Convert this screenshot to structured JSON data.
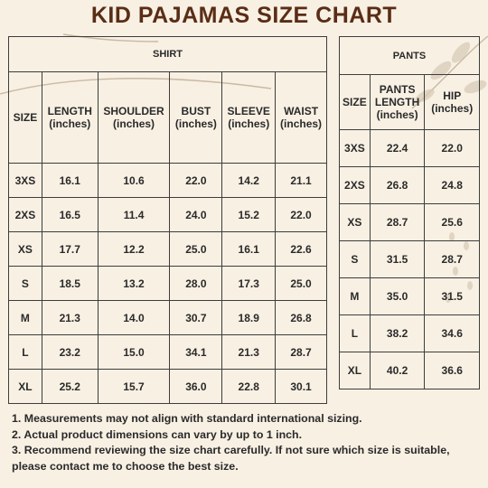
{
  "title": "KID PAJAMAS  SIZE CHART",
  "shirt": {
    "section_label": "SHIRT",
    "headers": [
      "SIZE",
      "LENGTH (inches)",
      "SHOULDER (inches)",
      "BUST (inches)",
      "SLEEVE (inches)",
      "WAIST (inches)"
    ],
    "rows": [
      [
        "3XS",
        "16.1",
        "10.6",
        "22.0",
        "14.2",
        "21.1"
      ],
      [
        "2XS",
        "16.5",
        "11.4",
        "24.0",
        "15.2",
        "22.0"
      ],
      [
        "XS",
        "17.7",
        "12.2",
        "25.0",
        "16.1",
        "22.6"
      ],
      [
        "S",
        "18.5",
        "13.2",
        "28.0",
        "17.3",
        "25.0"
      ],
      [
        "M",
        "21.3",
        "14.0",
        "30.7",
        "18.9",
        "26.8"
      ],
      [
        "L",
        "23.2",
        "15.0",
        "34.1",
        "21.3",
        "28.7"
      ],
      [
        "XL",
        "25.2",
        "15.7",
        "36.0",
        "22.8",
        "30.1"
      ]
    ]
  },
  "pants": {
    "section_label": "PANTS",
    "headers": [
      "SIZE",
      "PANTS LENGTH (inches)",
      "HIP (inches)"
    ],
    "rows": [
      [
        "3XS",
        "22.4",
        "22.0"
      ],
      [
        "2XS",
        "26.8",
        "24.8"
      ],
      [
        "XS",
        "28.7",
        "25.6"
      ],
      [
        "S",
        "31.5",
        "28.7"
      ],
      [
        "M",
        "35.0",
        "31.5"
      ],
      [
        "L",
        "38.2",
        "34.6"
      ],
      [
        "XL",
        "40.2",
        "36.6"
      ]
    ]
  },
  "notes": [
    "1. Measurements may not align with standard international sizing.",
    "2. Actual product dimensions can vary by up to 1 inch.",
    "3. Recommend reviewing the size chart carefully. If not sure which size is suitable,",
    "please contact me to choose the best size."
  ],
  "colors": {
    "background": "#f8f0e3",
    "title": "#5a2d16",
    "text": "#2a2a2a",
    "decoration": "#c9b9a3"
  }
}
